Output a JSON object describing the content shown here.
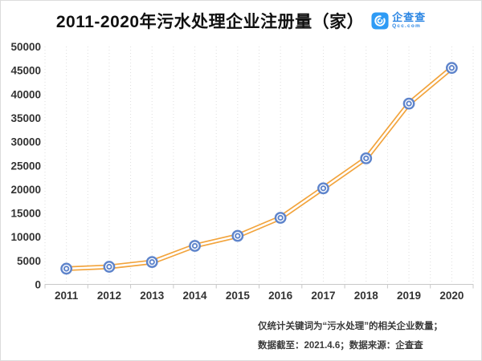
{
  "header": {
    "title": "2011-2020年污水处理企业注册量（家）",
    "logo": {
      "brand": "企查查",
      "domain": "Qcc.com",
      "icon": "qcc-spiral-c-icon",
      "icon_color": "#2e9bf5",
      "text_color": "#2b86e3"
    }
  },
  "chart_data": {
    "type": "line",
    "title": "2011-2020年污水处理企业注册量（家）",
    "categories": [
      "2011",
      "2012",
      "2013",
      "2014",
      "2015",
      "2016",
      "2017",
      "2018",
      "2019",
      "2020"
    ],
    "series": [
      {
        "name": "污水处理企业注册量",
        "values": [
          3300,
          3700,
          4700,
          8100,
          10200,
          14000,
          20200,
          26500,
          38000,
          45500
        ]
      }
    ],
    "xlabel": "",
    "ylabel": "",
    "ylim": [
      0,
      50000
    ],
    "y_tick_step": 5000,
    "y_tick_labels": [
      "0",
      "5000",
      "10000",
      "15000",
      "20000",
      "25000",
      "30000",
      "35000",
      "40000",
      "45000",
      "50000"
    ],
    "grid": "vertical-dotted-only",
    "legend": "none",
    "line_color": "#f2a43d",
    "line_style": "double-stroke",
    "marker_color": "#5e84cb",
    "marker_style": "double-ring-circle"
  },
  "footer": {
    "note_line1": "仅统计关键词为“污水处理”的相关企业数量；",
    "note_line2": "数据截至：2021.4.6；数据来源：企查查"
  }
}
